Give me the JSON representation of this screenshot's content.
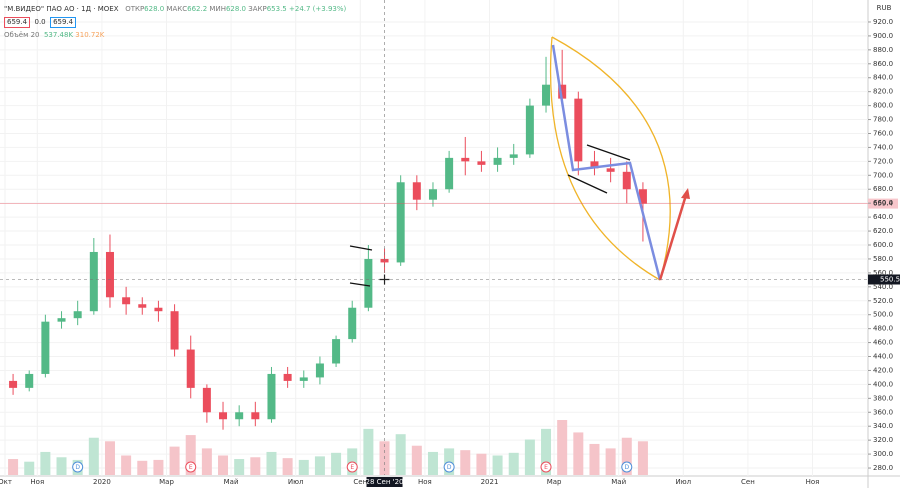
{
  "header": {
    "symbol": "\"М.ВИДЕО\" ПАО АО · 1Д · MOEX",
    "open_label": "ОТКР",
    "open": "628.0",
    "high_label": "МАКС",
    "high": "662.2",
    "low_label": "МИН",
    "low": "628.0",
    "close_label": "ЗАКР",
    "close": "653.5",
    "change": "+24.7 (+3.93%)",
    "bid": "659.4",
    "spread": "0.0",
    "ask": "659.4",
    "volume_label": "Объём 20",
    "volume": "537.48K",
    "volume_ma": "310.72K",
    "currency": "RUB"
  },
  "chart_data": {
    "type": "candlestick",
    "categories": [
      "Окт",
      null,
      "Ноя",
      null,
      null,
      null,
      "2020",
      null,
      null,
      null,
      "Мар",
      null,
      null,
      null,
      "Май",
      null,
      null,
      null,
      "Июл",
      null,
      null,
      null,
      "Сен",
      null,
      null,
      null,
      "Ноя",
      null,
      null,
      null,
      "2021",
      null,
      null,
      null,
      "Мар",
      null,
      null,
      null,
      "Май",
      null,
      null,
      null,
      "Июл",
      null,
      null,
      null,
      "Сен",
      null,
      null,
      null,
      "Ноя",
      null
    ],
    "open": [
      405,
      395,
      415,
      490,
      495,
      505,
      590,
      525,
      515,
      510,
      505,
      450,
      395,
      360,
      350,
      360,
      350,
      415,
      405,
      410,
      430,
      465,
      510,
      580,
      575,
      690,
      665,
      680,
      725,
      720,
      715,
      725,
      730,
      800,
      830,
      810,
      720,
      710,
      705,
      680,
      null,
      null,
      null,
      null,
      null,
      null,
      null,
      null,
      null,
      null,
      null,
      null
    ],
    "high": [
      415,
      420,
      500,
      505,
      520,
      610,
      615,
      540,
      525,
      520,
      515,
      470,
      400,
      375,
      370,
      375,
      425,
      425,
      420,
      440,
      470,
      520,
      600,
      595,
      700,
      700,
      690,
      735,
      755,
      735,
      740,
      745,
      810,
      870,
      880,
      820,
      735,
      725,
      720,
      690,
      null,
      null,
      null,
      null,
      null,
      null,
      null,
      null,
      null,
      null,
      null,
      null
    ],
    "low": [
      385,
      390,
      410,
      480,
      485,
      500,
      510,
      500,
      500,
      490,
      440,
      380,
      345,
      335,
      340,
      340,
      345,
      395,
      395,
      400,
      425,
      460,
      505,
      560,
      570,
      650,
      655,
      675,
      700,
      705,
      705,
      715,
      725,
      790,
      800,
      700,
      700,
      690,
      660,
      605,
      null,
      null,
      null,
      null,
      null,
      null,
      null,
      null,
      null,
      null,
      null,
      null
    ],
    "close": [
      395,
      415,
      490,
      495,
      505,
      590,
      525,
      515,
      510,
      505,
      450,
      395,
      360,
      350,
      360,
      350,
      415,
      405,
      410,
      430,
      465,
      510,
      580,
      575,
      690,
      665,
      680,
      725,
      720,
      715,
      725,
      730,
      800,
      830,
      810,
      720,
      710,
      705,
      680,
      659.4,
      null,
      null,
      null,
      null,
      null,
      null,
      null,
      null,
      null,
      null,
      null,
      null
    ],
    "volume": [
      180,
      150,
      260,
      200,
      170,
      420,
      380,
      220,
      160,
      170,
      320,
      450,
      300,
      220,
      180,
      200,
      260,
      190,
      170,
      210,
      250,
      300,
      520,
      380,
      460,
      330,
      260,
      300,
      280,
      240,
      220,
      250,
      400,
      520,
      620,
      480,
      350,
      300,
      420,
      380,
      null,
      null,
      null,
      null,
      null,
      null,
      null,
      null,
      null,
      null,
      null,
      null
    ],
    "up_color": "#53b987",
    "down_color": "#eb4d5c",
    "volume_up_color": "#bfe5d3",
    "volume_down_color": "#f5c4c9",
    "ylim": [
      270,
      930
    ],
    "yticks": [
      {
        "value": 280,
        "label": "280.0"
      },
      {
        "value": 300,
        "label": "300.0"
      },
      {
        "value": 320,
        "label": "320.0"
      },
      {
        "value": 340,
        "label": "340.0"
      },
      {
        "value": 360,
        "label": "360.0"
      },
      {
        "value": 380,
        "label": "380.0"
      },
      {
        "value": 400,
        "label": "400.0"
      },
      {
        "value": 420,
        "label": "420.0"
      },
      {
        "value": 440,
        "label": "440.0"
      },
      {
        "value": 460,
        "label": "460.0"
      },
      {
        "value": 480,
        "label": "480.0"
      },
      {
        "value": 500,
        "label": "500.0"
      },
      {
        "value": 520,
        "label": "520.0"
      },
      {
        "value": 540,
        "label": "540.0"
      },
      {
        "value": 560,
        "label": "560.0"
      },
      {
        "value": 580,
        "label": "580.0"
      },
      {
        "value": 600,
        "label": "600.0"
      },
      {
        "value": 620,
        "label": "620.0"
      },
      {
        "value": 640,
        "label": "640.0"
      },
      {
        "value": 660,
        "label": "660.0"
      },
      {
        "value": 680,
        "label": "680.0"
      },
      {
        "value": 700,
        "label": "700.0"
      },
      {
        "value": 720,
        "label": "720.0"
      },
      {
        "value": 740,
        "label": "740.0"
      },
      {
        "value": 760,
        "label": "760.0"
      },
      {
        "value": 780,
        "label": "780.0"
      },
      {
        "value": 800,
        "label": "800.0"
      },
      {
        "value": 820,
        "label": "820.0"
      },
      {
        "value": 840,
        "label": "840.0"
      },
      {
        "value": 860,
        "label": "860.0"
      },
      {
        "value": 880,
        "label": "880.0"
      },
      {
        "value": 900,
        "label": "900.0"
      },
      {
        "value": 920,
        "label": "920.0"
      }
    ],
    "grid": true,
    "last_price": {
      "value": 659.4,
      "label": "659.4"
    },
    "crosshair": {
      "category": 23,
      "date_label": "28 Сен '20",
      "value": 550.5,
      "label": "550.5"
    },
    "events": [
      {
        "label": "D",
        "category": 4
      },
      {
        "label": "E",
        "category": 11
      },
      {
        "label": "E",
        "category": 21
      },
      {
        "label": "D",
        "category": 27
      },
      {
        "label": "E",
        "category": 33
      },
      {
        "label": "D",
        "category": 38
      }
    ]
  }
}
